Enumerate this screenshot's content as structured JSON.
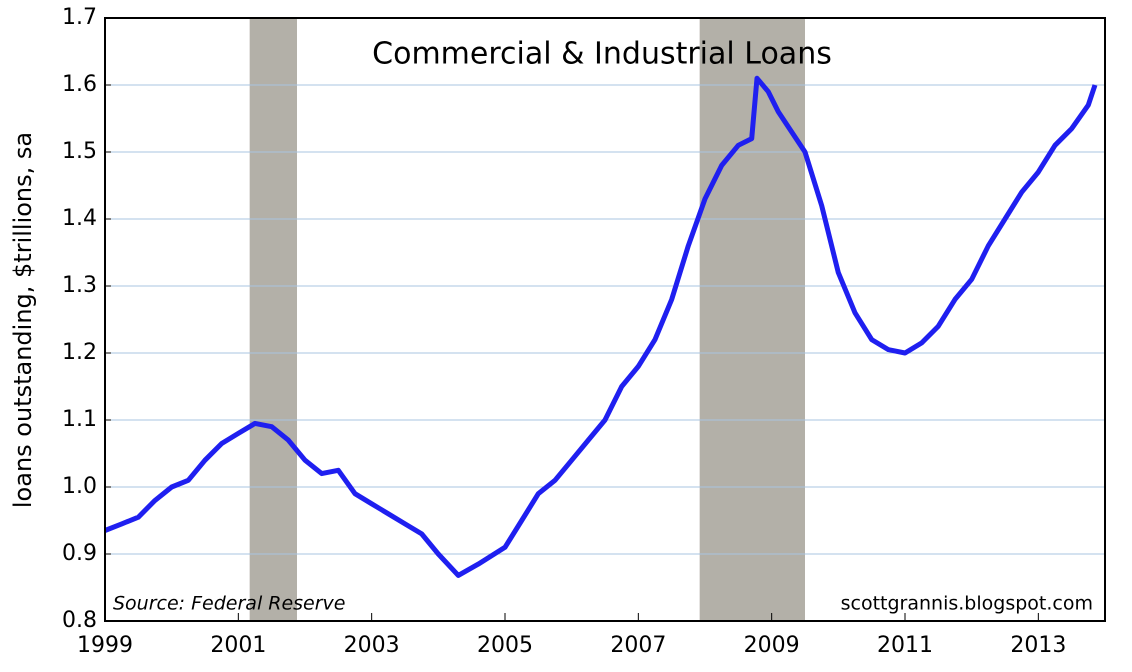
{
  "chart_data": {
    "type": "line",
    "title": "Commercial & Industrial Loans",
    "y_label": "loans outstanding, $trillions, sa",
    "source": "Source:  Federal Reserve",
    "credit": "scottgrannis.blogspot.com",
    "xlim": [
      1999,
      2014
    ],
    "xticks": [
      1999,
      2001,
      2003,
      2005,
      2007,
      2009,
      2011,
      2013
    ],
    "ylim": [
      0.8,
      1.7
    ],
    "yticks": [
      0.8,
      0.9,
      {
        "value": 1,
        "label": "1.0"
      },
      1.1,
      1.2,
      1.3,
      1.4,
      1.5,
      1.6,
      1.7
    ],
    "grid": true,
    "recessions": [
      [
        2001.17,
        2001.88
      ],
      [
        2007.92,
        2009.5
      ]
    ],
    "recession_color": "#b3b0a8",
    "series": [
      {
        "color": "#1f1ff0",
        "x": [
          1999.0,
          1999.25,
          1999.5,
          1999.75,
          2000.0,
          2000.25,
          2000.5,
          2000.75,
          2001.0,
          2001.25,
          2001.5,
          2001.75,
          2002.0,
          2002.25,
          2002.5,
          2002.75,
          2003.0,
          2003.25,
          2003.5,
          2003.75,
          2004.0,
          2004.3,
          2004.6,
          2005.0,
          2005.25,
          2005.5,
          2005.75,
          2006.0,
          2006.25,
          2006.5,
          2006.75,
          2007.0,
          2007.25,
          2007.5,
          2007.75,
          2008.0,
          2008.25,
          2008.5,
          2008.7,
          2008.78,
          2008.95,
          2009.1,
          2009.5,
          2009.75,
          2010.0,
          2010.25,
          2010.5,
          2010.75,
          2011.0,
          2011.25,
          2011.5,
          2011.75,
          2012.0,
          2012.25,
          2012.5,
          2012.75,
          2013.0,
          2013.25,
          2013.5,
          2013.75,
          2013.85
        ],
        "values": [
          0.935,
          0.945,
          0.955,
          0.98,
          1.0,
          1.01,
          1.04,
          1.065,
          1.08,
          1.095,
          1.09,
          1.07,
          1.04,
          1.02,
          1.025,
          0.99,
          0.975,
          0.96,
          0.945,
          0.93,
          0.9,
          0.868,
          0.885,
          0.91,
          0.95,
          0.99,
          1.01,
          1.04,
          1.07,
          1.1,
          1.15,
          1.18,
          1.22,
          1.28,
          1.36,
          1.43,
          1.48,
          1.51,
          1.52,
          1.61,
          1.59,
          1.56,
          1.5,
          1.42,
          1.32,
          1.26,
          1.22,
          1.205,
          1.2,
          1.215,
          1.24,
          1.28,
          1.31,
          1.36,
          1.4,
          1.44,
          1.47,
          1.51,
          1.535,
          1.57,
          1.6
        ]
      }
    ]
  }
}
